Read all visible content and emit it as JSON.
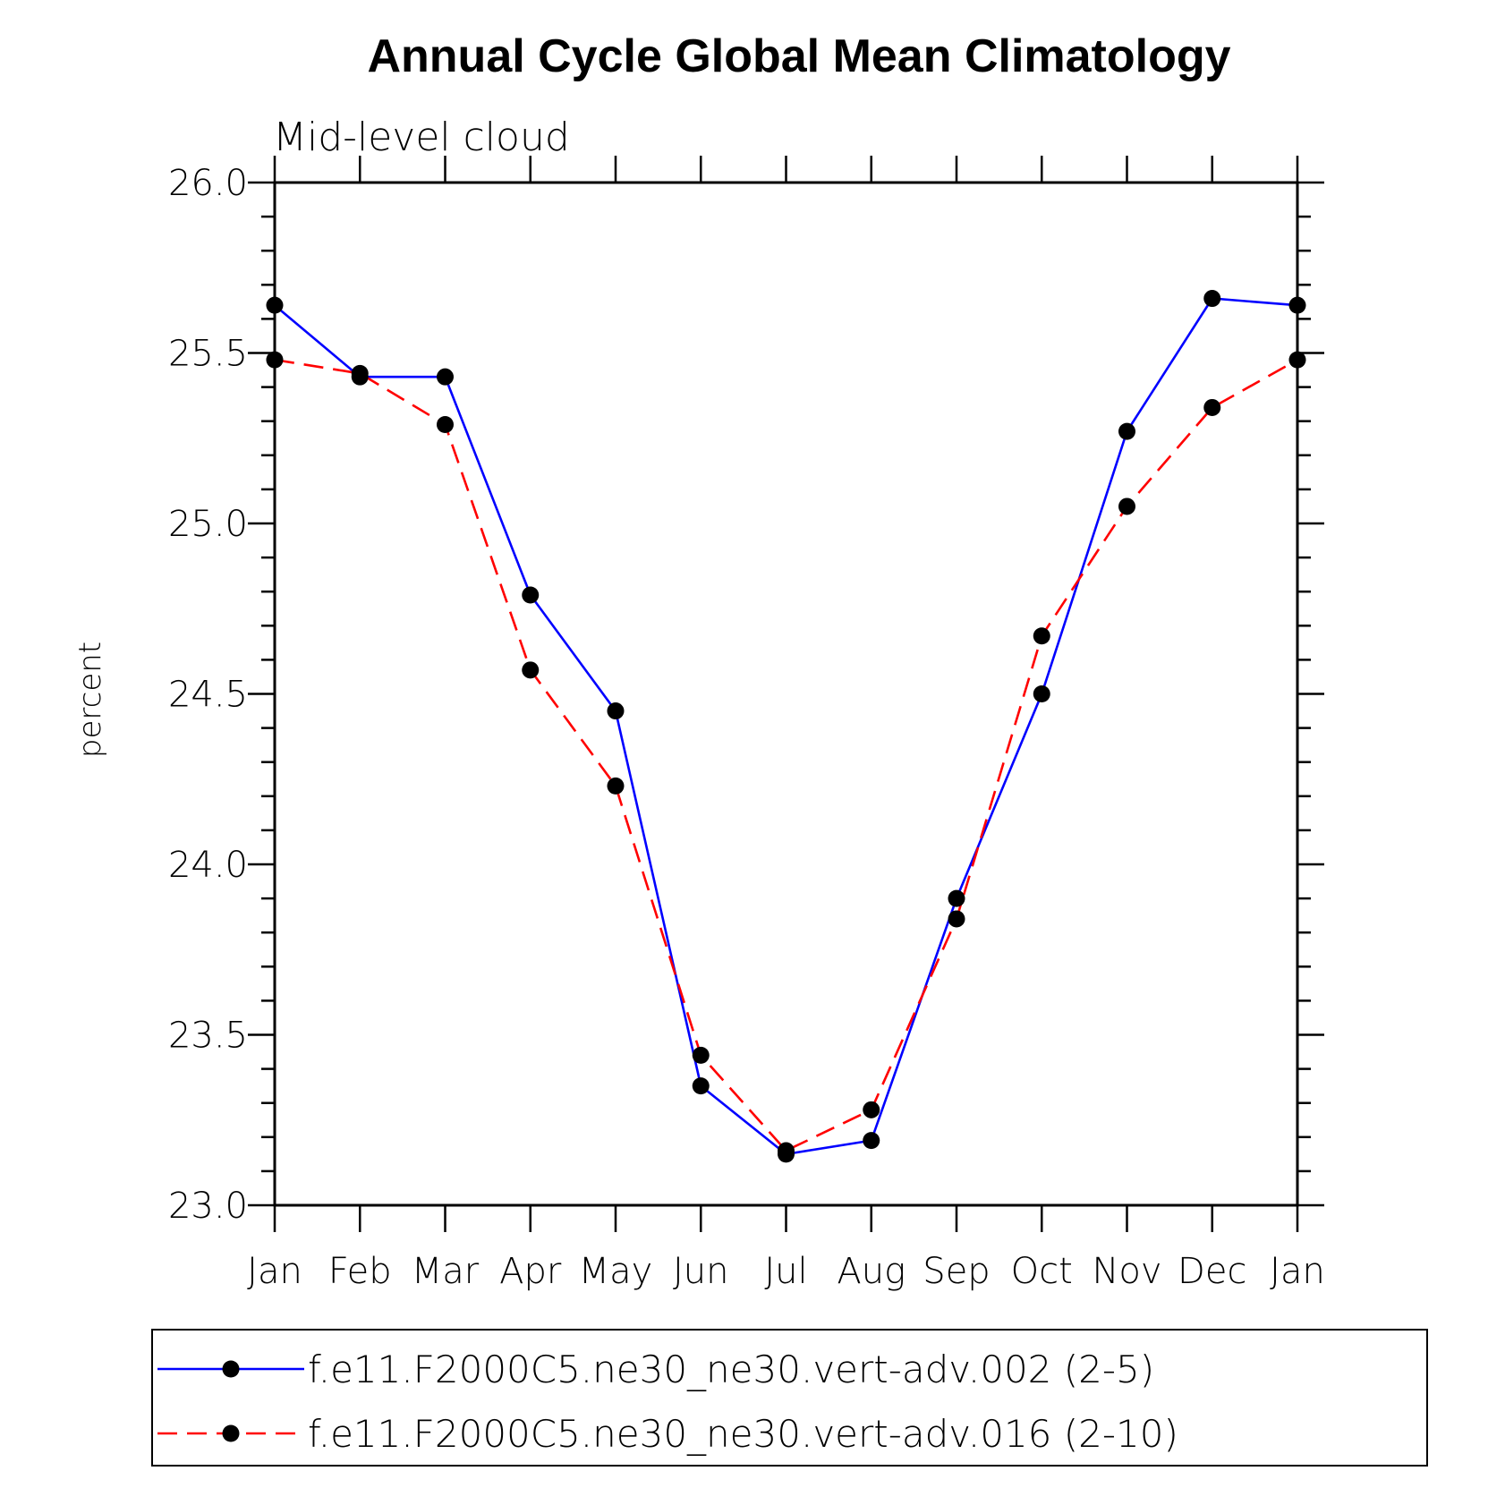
{
  "chart_data": {
    "type": "line",
    "title": "Annual Cycle Global Mean Climatology",
    "subtitle": "Mid-level cloud",
    "xlabel": "",
    "ylabel": "percent",
    "categories": [
      "Jan",
      "Feb",
      "Mar",
      "Apr",
      "May",
      "Jun",
      "Jul",
      "Aug",
      "Sep",
      "Oct",
      "Nov",
      "Dec",
      "Jan"
    ],
    "ylim": [
      23.0,
      26.0
    ],
    "yticks": [
      "23.0",
      "23.5",
      "24.0",
      "24.5",
      "25.0",
      "25.5",
      "26.0"
    ],
    "grid": false,
    "legend_position": "bottom",
    "series": [
      {
        "name": "f.e11.F2000C5.ne30_ne30.vert-adv.002 (2-5)",
        "color": "#0000ff",
        "dash": "solid",
        "marker": "circle",
        "values": [
          25.64,
          25.43,
          25.43,
          24.79,
          24.45,
          23.35,
          23.15,
          23.19,
          23.9,
          24.5,
          25.27,
          25.66,
          25.64
        ]
      },
      {
        "name": "f.e11.F2000C5.ne30_ne30.vert-adv.016 (2-10)",
        "color": "#ff0000",
        "dash": "dashed",
        "marker": "circle",
        "values": [
          25.48,
          25.44,
          25.29,
          24.57,
          24.23,
          23.44,
          23.16,
          23.28,
          23.84,
          24.67,
          25.05,
          25.34,
          25.48
        ]
      }
    ]
  }
}
